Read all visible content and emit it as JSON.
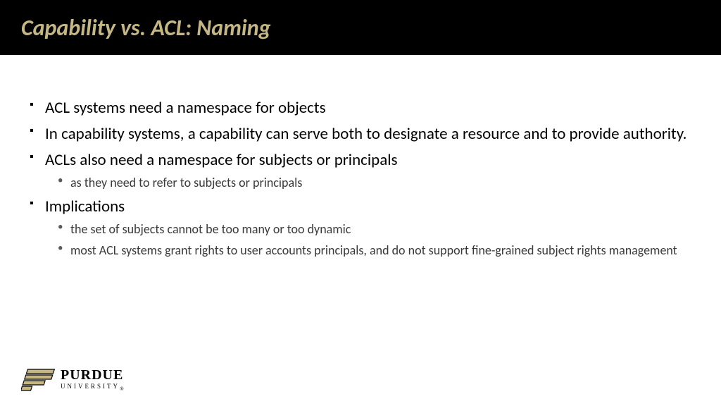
{
  "title": "Capability vs. ACL: Naming",
  "title_color": "#c5b783",
  "title_bg": "#000000",
  "bullets": [
    {
      "text": "ACL systems need a namespace for objects",
      "subs": []
    },
    {
      "text": "In capability systems, a capability can serve both to designate a resource and to provide authority.",
      "subs": []
    },
    {
      "text": "ACLs also need a namespace for subjects or principals",
      "subs": [
        "as they need to refer to subjects or principals"
      ]
    },
    {
      "text": "Implications",
      "subs": [
        "the set of subjects cannot be too many or too dynamic",
        "most ACL systems grant rights to user accounts principals, and do not support fine-grained subject rights management"
      ]
    }
  ],
  "logo": {
    "name": "PURDUE",
    "sub": "UNIVERSITY",
    "mark_fill": "#c5b783",
    "mark_stroke": "#000000"
  }
}
